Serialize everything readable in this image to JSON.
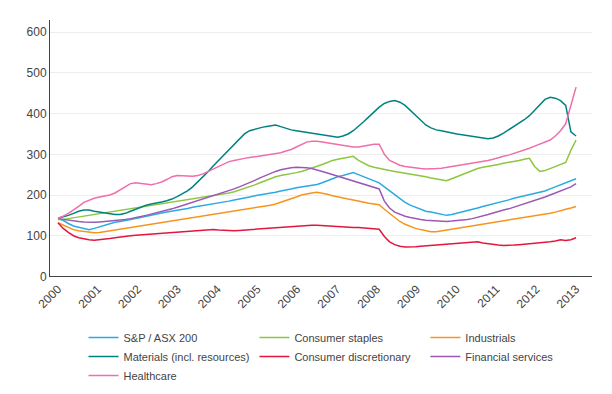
{
  "chart_data": {
    "type": "line",
    "x": [
      2000,
      2000.13,
      2000.26,
      2000.39,
      2000.52,
      2000.65,
      2000.78,
      2000.91,
      2001.04,
      2001.17,
      2001.3,
      2001.43,
      2001.56,
      2001.69,
      2001.82,
      2001.95,
      2002.08,
      2002.21,
      2002.34,
      2002.47,
      2002.6,
      2002.73,
      2002.86,
      2002.99,
      2003.12,
      2003.25,
      2003.38,
      2003.51,
      2003.64,
      2003.77,
      2003.9,
      2004.03,
      2004.16,
      2004.29,
      2004.42,
      2004.55,
      2004.68,
      2004.81,
      2004.94,
      2005.07,
      2005.2,
      2005.33,
      2005.46,
      2005.59,
      2005.72,
      2005.85,
      2005.98,
      2006.11,
      2006.24,
      2006.37,
      2006.5,
      2006.63,
      2006.76,
      2006.89,
      2007.02,
      2007.15,
      2007.28,
      2007.41,
      2007.54,
      2007.67,
      2007.8,
      2007.93,
      2008.06,
      2008.19,
      2008.32,
      2008.45,
      2008.58,
      2008.71,
      2008.84,
      2008.97,
      2009.1,
      2009.23,
      2009.36,
      2009.49,
      2009.62,
      2009.75,
      2009.88,
      2010.01,
      2010.14,
      2010.27,
      2010.4,
      2010.53,
      2010.66,
      2010.79,
      2010.92,
      2011.05,
      2011.18,
      2011.31,
      2011.44,
      2011.57,
      2011.7,
      2011.83,
      2011.96,
      2012.09,
      2012.22,
      2012.35,
      2012.48,
      2012.61,
      2012.74,
      2012.87,
      2013
    ],
    "xlim": [
      1999.8,
      2013.4
    ],
    "xticks": [
      2000,
      2001,
      2002,
      2003,
      2004,
      2005,
      2006,
      2007,
      2008,
      2009,
      2010,
      2011,
      2012,
      2013
    ],
    "ylim": [
      0,
      630
    ],
    "yticks": [
      0,
      100,
      200,
      300,
      400,
      500,
      600
    ],
    "grid": true,
    "legend": "bottom",
    "series": [
      {
        "name": "S&P / ASX 200",
        "color": "#29abe2",
        "values": [
          142,
          138,
          130,
          124,
          121,
          118,
          115,
          118,
          122,
          126,
          130,
          133,
          135,
          138,
          140,
          142,
          145,
          148,
          150,
          153,
          156,
          158,
          160,
          163,
          165,
          167,
          170,
          172,
          174,
          176,
          178,
          180,
          182,
          185,
          188,
          190,
          193,
          195,
          198,
          200,
          202,
          205,
          207,
          210,
          212,
          215,
          218,
          220,
          222,
          224,
          226,
          230,
          235,
          240,
          245,
          248,
          252,
          255,
          250,
          245,
          240,
          235,
          230,
          220,
          210,
          200,
          190,
          182,
          175,
          170,
          165,
          160,
          158,
          155,
          153,
          150,
          152,
          155,
          158,
          162,
          165,
          168,
          172,
          175,
          178,
          182,
          185,
          188,
          192,
          195,
          198,
          200,
          203,
          206,
          210,
          215,
          220,
          225,
          230,
          235,
          240
        ]
      },
      {
        "name": "Consumer staples",
        "color": "#8dc63f",
        "values": [
          140,
          140,
          142,
          144,
          146,
          148,
          150,
          152,
          154,
          156,
          158,
          160,
          162,
          164,
          166,
          168,
          170,
          172,
          174,
          176,
          178,
          180,
          182,
          184,
          186,
          188,
          190,
          192,
          194,
          196,
          198,
          200,
          202,
          205,
          208,
          212,
          216,
          220,
          225,
          230,
          235,
          240,
          245,
          248,
          250,
          252,
          255,
          258,
          262,
          266,
          270,
          275,
          280,
          285,
          288,
          290,
          292,
          295,
          285,
          278,
          272,
          268,
          265,
          262,
          260,
          258,
          256,
          254,
          252,
          250,
          248,
          245,
          242,
          240,
          238,
          235,
          240,
          245,
          250,
          255,
          260,
          265,
          268,
          270,
          272,
          275,
          278,
          280,
          283,
          285,
          288,
          290,
          270,
          258,
          260,
          265,
          270,
          275,
          280,
          310,
          335
        ]
      },
      {
        "name": "Industrials",
        "color": "#f7941d",
        "values": [
          132,
          126,
          120,
          115,
          112,
          110,
          108,
          107,
          108,
          110,
          112,
          114,
          116,
          118,
          120,
          122,
          124,
          126,
          128,
          130,
          132,
          134,
          136,
          138,
          140,
          142,
          144,
          146,
          148,
          150,
          152,
          154,
          156,
          158,
          160,
          162,
          164,
          166,
          168,
          170,
          172,
          175,
          178,
          182,
          186,
          190,
          195,
          200,
          203,
          205,
          207,
          205,
          202,
          198,
          195,
          192,
          190,
          188,
          185,
          182,
          180,
          178,
          176,
          165,
          155,
          145,
          135,
          128,
          122,
          118,
          115,
          112,
          110,
          110,
          112,
          114,
          116,
          118,
          120,
          122,
          124,
          126,
          128,
          130,
          132,
          134,
          136,
          138,
          140,
          142,
          144,
          146,
          148,
          150,
          152,
          155,
          158,
          162,
          165,
          168,
          172
        ]
      },
      {
        "name": "Materials (incl. resources)",
        "color": "#00827f",
        "values": [
          143,
          146,
          150,
          155,
          160,
          163,
          163,
          160,
          158,
          155,
          153,
          152,
          152,
          155,
          160,
          165,
          170,
          175,
          178,
          180,
          183,
          186,
          190,
          196,
          202,
          210,
          220,
          232,
          245,
          258,
          272,
          285,
          298,
          312,
          325,
          338,
          350,
          358,
          362,
          365,
          368,
          370,
          372,
          368,
          364,
          360,
          358,
          356,
          354,
          352,
          350,
          348,
          346,
          344,
          342,
          345,
          350,
          358,
          368,
          380,
          392,
          404,
          416,
          425,
          430,
          432,
          428,
          420,
          408,
          395,
          382,
          372,
          365,
          360,
          358,
          355,
          352,
          350,
          348,
          346,
          344,
          342,
          340,
          338,
          340,
          345,
          352,
          360,
          368,
          376,
          385,
          395,
          408,
          422,
          435,
          440,
          438,
          432,
          420,
          355,
          345
        ]
      },
      {
        "name": "Consumer discretionary",
        "color": "#e3173e",
        "values": [
          132,
          118,
          108,
          100,
          95,
          92,
          90,
          89,
          90,
          91,
          93,
          95,
          97,
          99,
          100,
          101,
          102,
          103,
          104,
          105,
          106,
          107,
          108,
          109,
          110,
          111,
          112,
          113,
          114,
          115,
          115,
          114,
          113,
          112,
          112,
          113,
          114,
          115,
          116,
          117,
          118,
          119,
          120,
          121,
          122,
          123,
          124,
          125,
          126,
          126,
          126,
          125,
          124,
          123,
          122,
          121,
          120,
          120,
          120,
          119,
          118,
          117,
          116,
          98,
          85,
          78,
          74,
          72,
          72,
          73,
          74,
          75,
          76,
          77,
          78,
          79,
          80,
          81,
          82,
          83,
          84,
          85,
          82,
          80,
          78,
          77,
          76,
          76,
          77,
          78,
          79,
          80,
          81,
          82,
          83,
          85,
          87,
          90,
          88,
          90,
          95
        ]
      },
      {
        "name": "Financial services",
        "color": "#9b59b6",
        "values": [
          142,
          140,
          138,
          136,
          135,
          134,
          133,
          133,
          134,
          135,
          136,
          137,
          138,
          140,
          142,
          144,
          147,
          150,
          153,
          156,
          160,
          163,
          166,
          170,
          174,
          178,
          182,
          186,
          190,
          194,
          198,
          202,
          206,
          210,
          215,
          220,
          225,
          230,
          236,
          242,
          248,
          254,
          258,
          262,
          265,
          267,
          268,
          268,
          267,
          265,
          262,
          258,
          254,
          250,
          246,
          242,
          238,
          234,
          230,
          226,
          222,
          218,
          215,
          185,
          168,
          158,
          152,
          148,
          145,
          142,
          140,
          138,
          137,
          136,
          135,
          135,
          136,
          137,
          138,
          140,
          142,
          145,
          148,
          152,
          156,
          160,
          163,
          166,
          170,
          174,
          178,
          182,
          186,
          190,
          195,
          200,
          205,
          210,
          215,
          220,
          228
        ]
      },
      {
        "name": "Healthcare",
        "color": "#f06eaa",
        "values": [
          143,
          148,
          155,
          163,
          172,
          182,
          188,
          192,
          195,
          197,
          200,
          205,
          212,
          220,
          228,
          230,
          228,
          226,
          225,
          228,
          232,
          238,
          245,
          248,
          248,
          247,
          246,
          248,
          252,
          258,
          265,
          272,
          278,
          282,
          285,
          288,
          290,
          292,
          294,
          296,
          298,
          300,
          302,
          304,
          308,
          312,
          318,
          325,
          330,
          332,
          332,
          330,
          328,
          326,
          324,
          322,
          320,
          318,
          318,
          320,
          322,
          325,
          325,
          300,
          285,
          278,
          273,
          270,
          268,
          266,
          265,
          264,
          264,
          265,
          266,
          268,
          270,
          272,
          274,
          276,
          278,
          280,
          282,
          285,
          288,
          292,
          295,
          298,
          302,
          306,
          310,
          315,
          320,
          325,
          330,
          335,
          345,
          358,
          375,
          420,
          465
        ]
      }
    ]
  }
}
